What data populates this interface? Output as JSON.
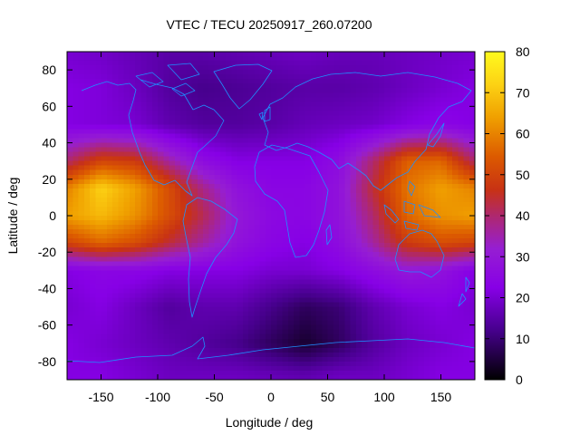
{
  "chart_data": {
    "type": "heatmap",
    "title": "VTEC / TECU 20250917_260.07200",
    "xlabel": "Longitude / deg",
    "ylabel": "Latitude / deg",
    "xlim": [
      -180,
      180
    ],
    "ylim": [
      -90,
      90
    ],
    "xticks": [
      -150,
      -100,
      -50,
      0,
      50,
      100,
      150
    ],
    "yticks": [
      80,
      60,
      40,
      20,
      0,
      -20,
      -40,
      -60,
      -80
    ],
    "colorbar": {
      "range": [
        0,
        80
      ],
      "ticks": [
        80,
        70,
        60,
        50,
        40,
        30,
        20,
        10,
        0
      ],
      "colormap": "black-purple-red-orange-yellow"
    },
    "grid": {
      "lon": [
        -180,
        -150,
        -120,
        -90,
        -60,
        -30,
        0,
        30,
        60,
        90,
        120,
        150,
        180
      ],
      "lat": [
        87.5,
        70,
        50,
        30,
        15,
        0,
        -15,
        -30,
        -50,
        -70,
        -87.5
      ],
      "values": [
        [
          20,
          19,
          17,
          15,
          15,
          16,
          17,
          18,
          17,
          17,
          18,
          19,
          20
        ],
        [
          22,
          21,
          18,
          14,
          12,
          13,
          14,
          15,
          15,
          16,
          18,
          20,
          22
        ],
        [
          22,
          21,
          20,
          16,
          14,
          14,
          15,
          17,
          18,
          19,
          22,
          24,
          22
        ],
        [
          40,
          50,
          48,
          36,
          26,
          22,
          22,
          22,
          26,
          40,
          55,
          56,
          40
        ],
        [
          60,
          72,
          64,
          52,
          38,
          28,
          24,
          24,
          28,
          44,
          58,
          64,
          60
        ],
        [
          64,
          68,
          62,
          52,
          42,
          30,
          25,
          24,
          28,
          40,
          56,
          62,
          64
        ],
        [
          50,
          56,
          52,
          44,
          36,
          28,
          24,
          22,
          26,
          36,
          48,
          52,
          50
        ],
        [
          22,
          24,
          24,
          22,
          22,
          22,
          20,
          20,
          22,
          26,
          30,
          28,
          22
        ],
        [
          20,
          22,
          18,
          14,
          16,
          16,
          12,
          8,
          10,
          16,
          20,
          22,
          20
        ],
        [
          22,
          20,
          18,
          16,
          14,
          12,
          8,
          4,
          8,
          14,
          18,
          20,
          22
        ],
        [
          22,
          22,
          20,
          18,
          18,
          18,
          17,
          16,
          18,
          18,
          20,
          22,
          22
        ]
      ]
    },
    "overlay": "coastlines"
  }
}
